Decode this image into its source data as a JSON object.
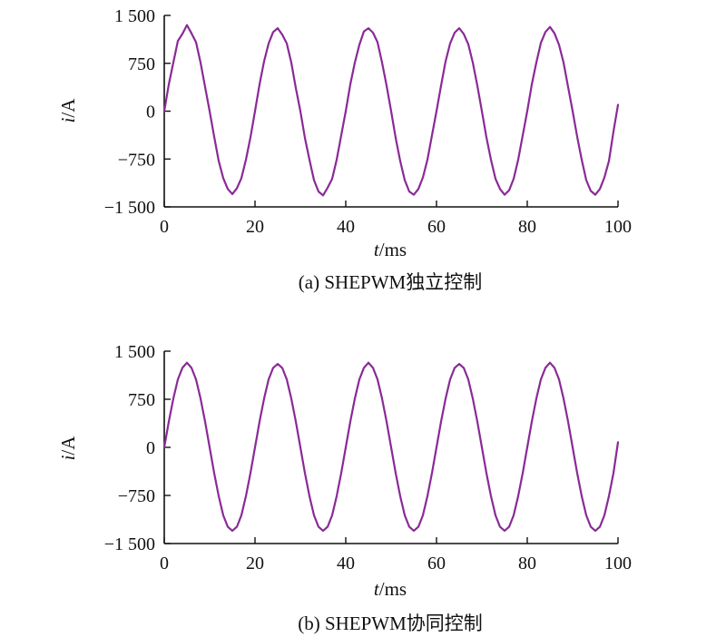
{
  "chart_data": [
    {
      "type": "line",
      "panel": "a",
      "caption": "(a) SHEPWM独立控制",
      "xlabel_var": "t",
      "xlabel_unit": "/ms",
      "ylabel_var": "i",
      "ylabel_unit": "/A",
      "xlim": [
        0,
        100
      ],
      "ylim": [
        -1500,
        1500
      ],
      "x_ticks": [
        0,
        20,
        40,
        60,
        80,
        100
      ],
      "x_tick_labels": [
        "0",
        "20",
        "40",
        "60",
        "80",
        "100"
      ],
      "y_ticks": [
        1500,
        750,
        0,
        -750,
        -1500
      ],
      "y_tick_labels": [
        "1 500",
        "750",
        "0",
        "−750",
        "−1 500"
      ],
      "grid": false,
      "legend": "none",
      "line_color": "#8a2a96",
      "series": [
        {
          "amplitude": 1300,
          "frequency_hz": 50,
          "x": [
            0,
            1,
            2,
            3,
            4,
            5,
            6,
            7,
            8,
            9,
            10,
            11,
            12,
            13,
            14,
            15,
            16,
            17,
            18,
            19,
            20,
            21,
            22,
            23,
            24,
            25,
            26,
            27,
            28,
            29,
            30,
            31,
            32,
            33,
            34,
            35,
            36,
            37,
            38,
            39,
            40,
            41,
            42,
            43,
            44,
            45,
            46,
            47,
            48,
            49,
            50,
            51,
            52,
            53,
            54,
            55,
            56,
            57,
            58,
            59,
            60,
            61,
            62,
            63,
            64,
            65,
            66,
            67,
            68,
            69,
            70,
            71,
            72,
            73,
            74,
            75,
            76,
            77,
            78,
            79,
            80,
            81,
            82,
            83,
            84,
            85,
            86,
            87,
            88,
            89,
            90,
            91,
            92,
            93,
            94,
            95,
            96,
            97,
            98,
            99,
            100
          ],
          "values": [
            0,
            420,
            760,
            1100,
            1210,
            1350,
            1220,
            1080,
            760,
            380,
            0,
            -400,
            -780,
            -1050,
            -1220,
            -1300,
            -1210,
            -1050,
            -760,
            -410,
            0,
            420,
            780,
            1060,
            1240,
            1300,
            1200,
            1060,
            760,
            360,
            0,
            -420,
            -760,
            -1080,
            -1260,
            -1320,
            -1200,
            -1060,
            -760,
            -380,
            0,
            420,
            760,
            1040,
            1250,
            1300,
            1230,
            1080,
            760,
            400,
            0,
            -420,
            -780,
            -1080,
            -1260,
            -1310,
            -1220,
            -1040,
            -760,
            -380,
            0,
            400,
            780,
            1060,
            1230,
            1300,
            1210,
            1050,
            760,
            400,
            0,
            -410,
            -760,
            -1060,
            -1220,
            -1310,
            -1240,
            -1060,
            -760,
            -380,
            0,
            420,
            760,
            1070,
            1240,
            1320,
            1220,
            1040,
            760,
            380,
            0,
            -400,
            -760,
            -1080,
            -1250,
            -1310,
            -1220,
            -1040,
            -780,
            -320,
            100
          ]
        }
      ]
    },
    {
      "type": "line",
      "panel": "b",
      "caption": "(b) SHEPWM协同控制",
      "xlabel_var": "t",
      "xlabel_unit": "/ms",
      "ylabel_var": "i",
      "ylabel_unit": "/A",
      "xlim": [
        0,
        100
      ],
      "ylim": [
        -1500,
        1500
      ],
      "x_ticks": [
        0,
        20,
        40,
        60,
        80,
        100
      ],
      "x_tick_labels": [
        "0",
        "20",
        "40",
        "60",
        "80",
        "100"
      ],
      "y_ticks": [
        1500,
        750,
        0,
        -750,
        -1500
      ],
      "y_tick_labels": [
        "1 500",
        "750",
        "0",
        "−750",
        "−1 500"
      ],
      "grid": false,
      "legend": "none",
      "line_color": "#8a2a96",
      "series": [
        {
          "amplitude": 1300,
          "frequency_hz": 50,
          "x": [
            0,
            1,
            2,
            3,
            4,
            5,
            6,
            7,
            8,
            9,
            10,
            11,
            12,
            13,
            14,
            15,
            16,
            17,
            18,
            19,
            20,
            21,
            22,
            23,
            24,
            25,
            26,
            27,
            28,
            29,
            30,
            31,
            32,
            33,
            34,
            35,
            36,
            37,
            38,
            39,
            40,
            41,
            42,
            43,
            44,
            45,
            46,
            47,
            48,
            49,
            50,
            51,
            52,
            53,
            54,
            55,
            56,
            57,
            58,
            59,
            60,
            61,
            62,
            63,
            64,
            65,
            66,
            67,
            68,
            69,
            70,
            71,
            72,
            73,
            74,
            75,
            76,
            77,
            78,
            79,
            80,
            81,
            82,
            83,
            84,
            85,
            86,
            87,
            88,
            89,
            90,
            91,
            92,
            93,
            94,
            95,
            96,
            97,
            98,
            99,
            100
          ],
          "values": [
            0,
            400,
            760,
            1060,
            1240,
            1320,
            1240,
            1060,
            760,
            400,
            0,
            -400,
            -760,
            -1060,
            -1240,
            -1300,
            -1240,
            -1060,
            -760,
            -400,
            0,
            400,
            760,
            1060,
            1240,
            1300,
            1240,
            1060,
            760,
            400,
            0,
            -400,
            -760,
            -1060,
            -1240,
            -1300,
            -1240,
            -1060,
            -760,
            -400,
            0,
            400,
            760,
            1060,
            1240,
            1320,
            1240,
            1060,
            760,
            400,
            0,
            -400,
            -760,
            -1060,
            -1240,
            -1300,
            -1240,
            -1060,
            -760,
            -400,
            0,
            400,
            760,
            1060,
            1240,
            1300,
            1240,
            1060,
            760,
            400,
            0,
            -400,
            -760,
            -1060,
            -1240,
            -1300,
            -1240,
            -1060,
            -760,
            -400,
            0,
            400,
            760,
            1060,
            1240,
            1320,
            1240,
            1060,
            760,
            400,
            0,
            -400,
            -760,
            -1060,
            -1240,
            -1300,
            -1240,
            -1060,
            -760,
            -400,
            80
          ]
        }
      ]
    }
  ]
}
